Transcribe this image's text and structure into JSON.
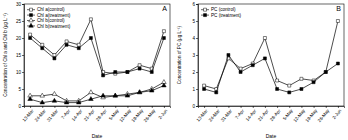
{
  "chart_data": [
    {
      "type": "line",
      "title": "A",
      "x_label": "Date",
      "y_label": "Concentration of Chl a and Chl b (μg L⁻¹)",
      "categories": [
        "13-Mar",
        "24-Mar",
        "31-Mar",
        "7-Apr",
        "14-Apr",
        "21-Apr",
        "28-Apr",
        "5-May",
        "12-May",
        "19-May",
        "26-May",
        "2-Jun"
      ],
      "ylim": [
        0,
        30
      ],
      "yticks": [
        0,
        5,
        10,
        15,
        20,
        25,
        30
      ],
      "legend": "upper left",
      "series": [
        {
          "name": "Chl a(control)",
          "color": "#000000",
          "marker": "square-open",
          "values": [
            21,
            18,
            15,
            19,
            18,
            25.5,
            10,
            9.5,
            10,
            12,
            11,
            22
          ]
        },
        {
          "name": "Chl a(treatment)",
          "color": "#000000",
          "marker": "square",
          "values": [
            20,
            17,
            14,
            18,
            17,
            20,
            9,
            10,
            10,
            11,
            10,
            20
          ]
        },
        {
          "name": "Chl b(control)",
          "color": "#000000",
          "marker": "triangle-open",
          "values": [
            3,
            3,
            3.5,
            1.5,
            1.5,
            4,
            2.5,
            3,
            3.5,
            4,
            5,
            7
          ]
        },
        {
          "name": "Chl b(treatment)",
          "color": "#000000",
          "marker": "triangle",
          "values": [
            2,
            1,
            1.5,
            1,
            1,
            2,
            3,
            3,
            3,
            4,
            4.5,
            6
          ]
        }
      ]
    },
    {
      "type": "line",
      "title": "B",
      "x_label": "Date",
      "y_label": "Concentration of PC (μg L⁻¹)",
      "categories": [
        "13-Mar",
        "24-Mar",
        "31-Mar",
        "7-Apr",
        "14-Apr",
        "21-Apr",
        "28-Apr",
        "5-May",
        "12-May",
        "19-May",
        "26-May",
        "2-Jun"
      ],
      "ylim": [
        0,
        6
      ],
      "yticks": [
        0,
        1,
        2,
        3,
        4,
        5,
        6
      ],
      "legend": "upper left",
      "series": [
        {
          "name": "PC (control)",
          "color": "#000000",
          "marker": "square-open",
          "values": [
            1.2,
            1.0,
            2.8,
            2.2,
            2.5,
            4.0,
            1.5,
            1.2,
            1.6,
            1.5,
            2.0,
            5.0
          ]
        },
        {
          "name": "PC (treatment)",
          "color": "#000000",
          "marker": "square",
          "values": [
            1.0,
            0.8,
            3.0,
            2.0,
            2.4,
            2.8,
            1.0,
            0.8,
            1.0,
            1.4,
            2.0,
            2.5
          ]
        }
      ]
    }
  ]
}
